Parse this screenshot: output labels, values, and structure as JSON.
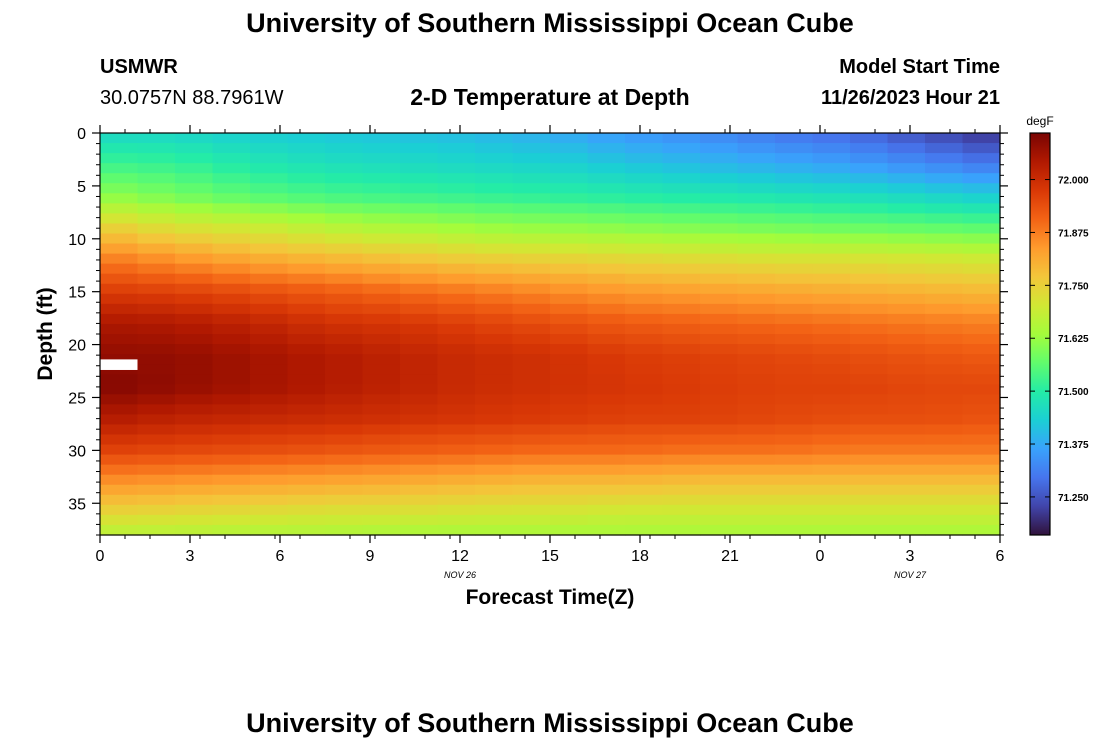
{
  "page": {
    "title": "University of Southern Mississippi Ocean Cube",
    "station": "USMWR",
    "coords": "30.0757N  88.7961W",
    "chart_title": "2-D Temperature at Depth",
    "model_start_label": "Model Start Time",
    "model_start_value": "11/26/2023 Hour 21",
    "footer_title": "University of Southern Mississippi Ocean Cube"
  },
  "chart_data": {
    "type": "heatmap",
    "title": "2-D Temperature at Depth",
    "xlabel": "Forecast Time(Z)",
    "ylabel": "Depth (ft)",
    "x_tick_labels": [
      "0",
      "3",
      "6",
      "9",
      "12",
      "15",
      "18",
      "21",
      "0",
      "3",
      "6"
    ],
    "x_date_labels": [
      {
        "after_tick": "12",
        "text": "NOV 26"
      },
      {
        "after_tick": "3",
        "text": "NOV 27"
      }
    ],
    "x_range_hours": [
      0,
      36
    ],
    "y_tick_labels": [
      "0",
      "5",
      "10",
      "15",
      "20",
      "25",
      "30",
      "35"
    ],
    "ylim_ft": [
      0,
      38
    ],
    "y_inverted": true,
    "colorbar": {
      "unit": "degF",
      "tick_labels": [
        "72.000",
        "71.875",
        "71.750",
        "71.625",
        "71.500",
        "71.375",
        "71.250"
      ],
      "range": [
        71.16,
        72.11
      ],
      "colors": [
        "#30123b",
        "#4145ab",
        "#4675ed",
        "#39a2fc",
        "#1bcfd4",
        "#24eca6",
        "#61fc6c",
        "#a4fc3b",
        "#d1e834",
        "#f3c63a",
        "#fe9b2d",
        "#f36315",
        "#d93806",
        "#b11901",
        "#7a0402"
      ]
    },
    "time_hours": [
      0,
      3,
      6,
      9,
      12,
      15,
      18,
      21,
      24,
      27,
      30,
      33,
      36
    ],
    "depth_ft": [
      0,
      3,
      6,
      9,
      12,
      15,
      18,
      21,
      24,
      27,
      30,
      33,
      36,
      38
    ],
    "temperature_degF": [
      [
        71.45,
        71.45,
        71.43,
        71.42,
        71.41,
        71.4,
        71.38,
        71.35,
        71.33,
        71.3,
        71.28,
        71.24,
        71.2
      ],
      [
        71.53,
        71.52,
        71.49,
        71.47,
        71.46,
        71.45,
        71.44,
        71.42,
        71.4,
        71.38,
        71.36,
        71.33,
        71.3
      ],
      [
        71.62,
        71.59,
        71.56,
        71.54,
        71.53,
        71.52,
        71.51,
        71.5,
        71.49,
        71.48,
        71.47,
        71.45,
        71.43
      ],
      [
        71.76,
        71.72,
        71.7,
        71.67,
        71.65,
        71.63,
        71.62,
        71.61,
        71.6,
        71.59,
        71.58,
        71.57,
        71.56
      ],
      [
        71.88,
        71.85,
        71.82,
        71.8,
        71.78,
        71.76,
        71.75,
        71.74,
        71.73,
        71.72,
        71.72,
        71.71,
        71.7
      ],
      [
        71.97,
        71.96,
        71.94,
        71.92,
        71.9,
        71.88,
        71.86,
        71.84,
        71.83,
        71.82,
        71.81,
        71.8,
        71.79
      ],
      [
        72.05,
        72.04,
        72.02,
        71.99,
        71.98,
        71.96,
        71.94,
        71.92,
        71.91,
        71.9,
        71.89,
        71.88,
        71.87
      ],
      [
        72.08,
        72.08,
        72.06,
        72.04,
        72.02,
        72.0,
        71.99,
        71.97,
        71.96,
        71.95,
        71.94,
        71.93,
        71.92
      ],
      [
        72.1,
        72.08,
        72.06,
        72.04,
        72.02,
        72.0,
        71.99,
        71.98,
        71.97,
        71.96,
        71.96,
        71.95,
        71.95
      ],
      [
        72.04,
        72.02,
        72.01,
        72.0,
        71.99,
        71.98,
        71.97,
        71.96,
        71.96,
        71.95,
        71.94,
        71.94,
        71.93
      ],
      [
        71.96,
        71.95,
        71.94,
        71.93,
        71.92,
        71.91,
        71.9,
        71.9,
        71.89,
        71.89,
        71.88,
        71.88,
        71.88
      ],
      [
        71.85,
        71.84,
        71.83,
        71.82,
        71.81,
        71.8,
        71.79,
        71.79,
        71.78,
        71.78,
        71.78,
        71.78,
        71.78
      ],
      [
        71.74,
        71.73,
        71.72,
        71.71,
        71.71,
        71.7,
        71.7,
        71.69,
        71.69,
        71.69,
        71.69,
        71.69,
        71.69
      ],
      [
        71.66,
        71.66,
        71.65,
        71.65,
        71.64,
        71.64,
        71.64,
        71.64,
        71.64,
        71.64,
        71.64,
        71.64,
        71.64
      ]
    ],
    "grid": false
  }
}
